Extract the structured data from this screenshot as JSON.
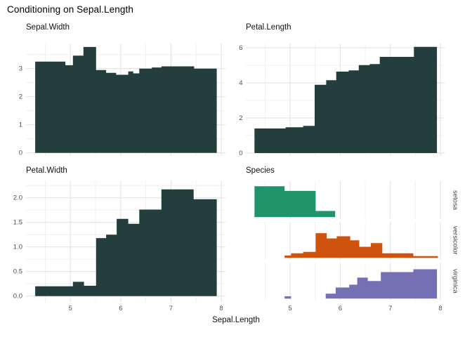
{
  "title": "Conditioning on Sepal.Length",
  "x_axis": {
    "title": "Sepal.Length",
    "tick_values": [
      5,
      6,
      7,
      8
    ],
    "tick_labels": [
      "5",
      "6",
      "7",
      "8"
    ],
    "minor_values": [
      4.5,
      5.5,
      6.5,
      7.5
    ],
    "range": [
      4.117,
      8.083
    ]
  },
  "colors": {
    "bar": "#233e3c",
    "setosa": "#1f9468",
    "versicolor": "#cf530e",
    "virginica": "#7570b3",
    "grid_major": "#e2e2e2",
    "grid_minor": "#eeeeee",
    "axis_text": "#4d4d4d"
  },
  "chart_data": [
    {
      "type": "area",
      "title": "Sepal.Width",
      "x_edges": [
        4.3,
        4.9,
        5.05,
        5.26,
        5.51,
        5.71,
        5.91,
        6.15,
        6.25,
        6.37,
        6.62,
        6.81,
        7.46,
        7.91
      ],
      "values": [
        3.25,
        3.12,
        3.46,
        3.77,
        2.95,
        2.85,
        2.78,
        2.9,
        2.83,
        3.0,
        3.04,
        3.08,
        3.0
      ],
      "y_ticks": [
        {
          "v": 0,
          "label": "0"
        },
        {
          "v": 1,
          "label": "1"
        },
        {
          "v": 2,
          "label": "2"
        },
        {
          "v": 3,
          "label": "3"
        }
      ],
      "y_minor": [
        0.5,
        1.5,
        2.5,
        3.5
      ],
      "ylim": [
        0,
        3.89
      ],
      "grid": true,
      "legend": "none"
    },
    {
      "type": "area",
      "title": "Petal.Length",
      "x_edges": [
        4.29,
        4.91,
        5.26,
        5.49,
        5.72,
        5.92,
        6.17,
        6.37,
        6.59,
        6.79,
        7.47,
        7.93
      ],
      "values": [
        1.4,
        1.47,
        1.55,
        3.89,
        4.15,
        4.64,
        4.71,
        5.01,
        5.07,
        5.48,
        6.05
      ],
      "y_ticks": [
        {
          "v": 0,
          "label": "0"
        },
        {
          "v": 2,
          "label": "2"
        },
        {
          "v": 4,
          "label": "4"
        },
        {
          "v": 6,
          "label": "6"
        }
      ],
      "y_minor": [
        1,
        3,
        5
      ],
      "ylim": [
        0,
        6.24
      ],
      "grid": true,
      "legend": "none"
    },
    {
      "type": "area",
      "title": "Petal.Width",
      "x_edges": [
        4.3,
        5.05,
        5.27,
        5.51,
        5.71,
        5.92,
        6.15,
        6.37,
        6.81,
        7.45,
        7.91
      ],
      "values": [
        0.2,
        0.29,
        0.21,
        1.18,
        1.25,
        1.57,
        1.47,
        1.76,
        2.17,
        1.97
      ],
      "y_ticks": [
        {
          "v": 0,
          "label": "0.0"
        },
        {
          "v": 0.5,
          "label": "0.5"
        },
        {
          "v": 1,
          "label": "1.0"
        },
        {
          "v": 1.5,
          "label": "1.5"
        },
        {
          "v": 2,
          "label": "2.0"
        }
      ],
      "y_minor": [
        0.25,
        0.75,
        1.25,
        1.75,
        2.25
      ],
      "ylim": [
        0,
        2.34
      ],
      "grid": true,
      "legend": "none"
    },
    {
      "type": "faceted-area",
      "title": "Species",
      "note": "proportion of each species within Sepal.Length bins; facet strips on right",
      "facets": [
        {
          "name": "setosa",
          "color_key": "setosa",
          "segments": [
            [
              4.29,
              4.89,
              1.0
            ],
            [
              4.89,
              5.51,
              0.85
            ],
            [
              5.51,
              5.9,
              0.2
            ]
          ]
        },
        {
          "name": "versicolor",
          "color_key": "versicolor",
          "segments": [
            [
              4.89,
              5.02,
              0.075
            ],
            [
              5.02,
              5.26,
              0.15
            ],
            [
              5.26,
              5.51,
              0.195
            ],
            [
              5.51,
              5.73,
              0.8
            ],
            [
              5.73,
              5.93,
              0.63
            ],
            [
              5.93,
              6.2,
              0.7
            ],
            [
              6.2,
              6.38,
              0.57
            ],
            [
              6.38,
              6.61,
              0.36
            ],
            [
              6.61,
              6.84,
              0.48
            ],
            [
              6.84,
              7.46,
              0.15
            ],
            [
              7.46,
              7.95,
              0.06
            ]
          ]
        },
        {
          "name": "virginica",
          "color_key": "virginica",
          "segments": [
            [
              4.89,
              5.02,
              0.075
            ],
            [
              5.71,
              5.91,
              0.16
            ],
            [
              5.91,
              6.18,
              0.36
            ],
            [
              6.18,
              6.34,
              0.45
            ],
            [
              6.34,
              6.55,
              0.68
            ],
            [
              6.55,
              6.81,
              0.57
            ],
            [
              6.81,
              7.46,
              0.86
            ],
            [
              7.46,
              7.93,
              0.95
            ]
          ]
        }
      ],
      "ylim": [
        0,
        1.15
      ],
      "grid": "vertical-only",
      "legend": "none"
    }
  ]
}
